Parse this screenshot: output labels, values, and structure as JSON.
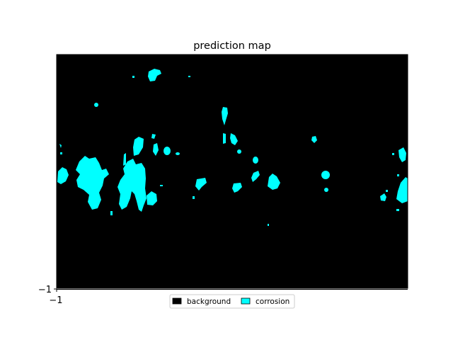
{
  "title": "prediction map",
  "axes": {
    "x_tick_label": "−1",
    "y_tick_label": "−1"
  },
  "colors": {
    "background": "#000000",
    "corrosion": "#00ffff",
    "figure_bg": "#ffffff"
  },
  "legend": {
    "placement": "bottom-center",
    "items": [
      {
        "label": "background",
        "color": "#000000"
      },
      {
        "label": "corrosion",
        "color": "#00ffff"
      }
    ]
  }
}
